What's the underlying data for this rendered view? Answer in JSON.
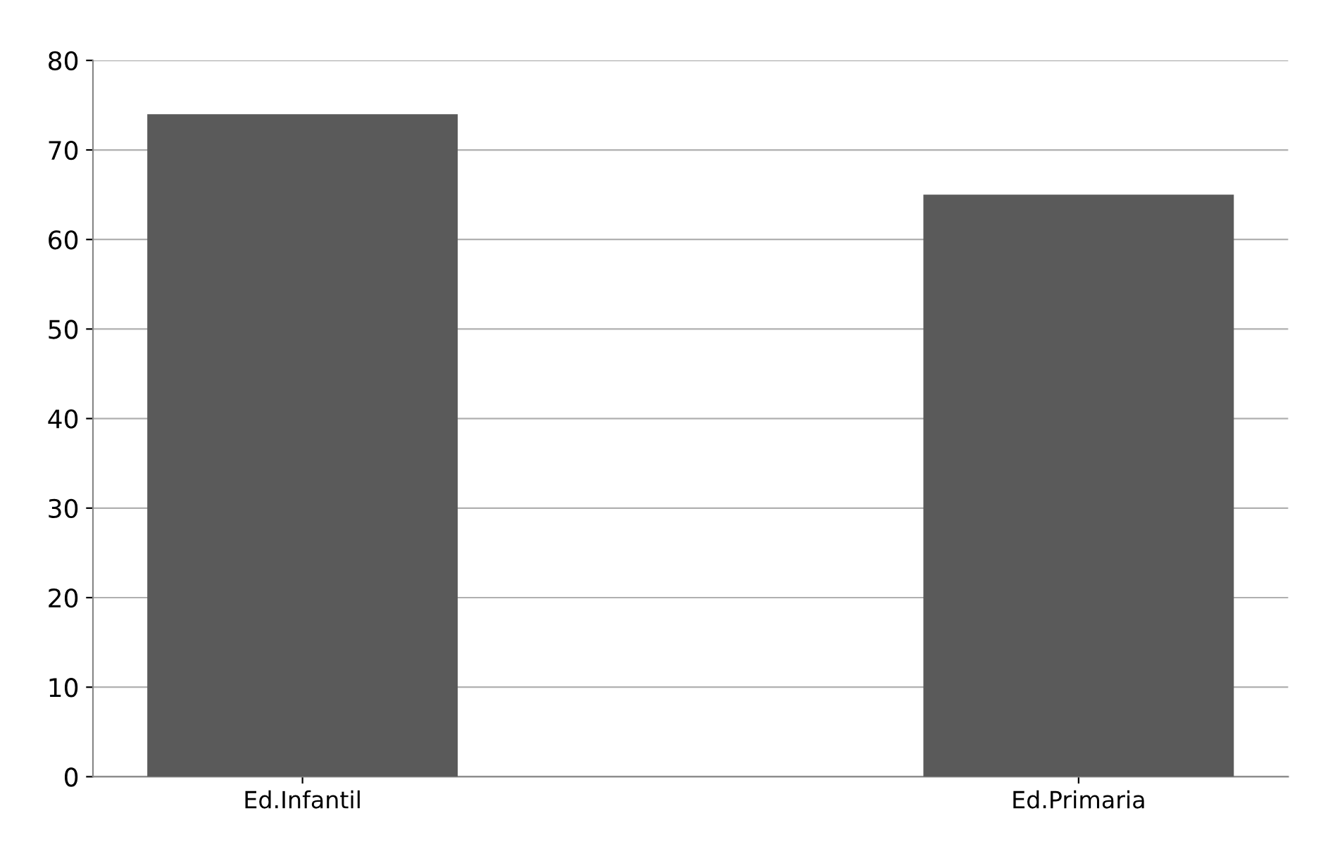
{
  "chart_data": {
    "type": "bar",
    "categories": [
      "Ed.Infantil",
      "Ed.Primaria"
    ],
    "values": [
      74,
      65
    ],
    "color": "#5a5a5a",
    "ylim": [
      0,
      80
    ],
    "yticks": [
      0,
      10,
      20,
      30,
      40,
      50,
      60,
      70,
      80
    ],
    "grid": "y"
  }
}
